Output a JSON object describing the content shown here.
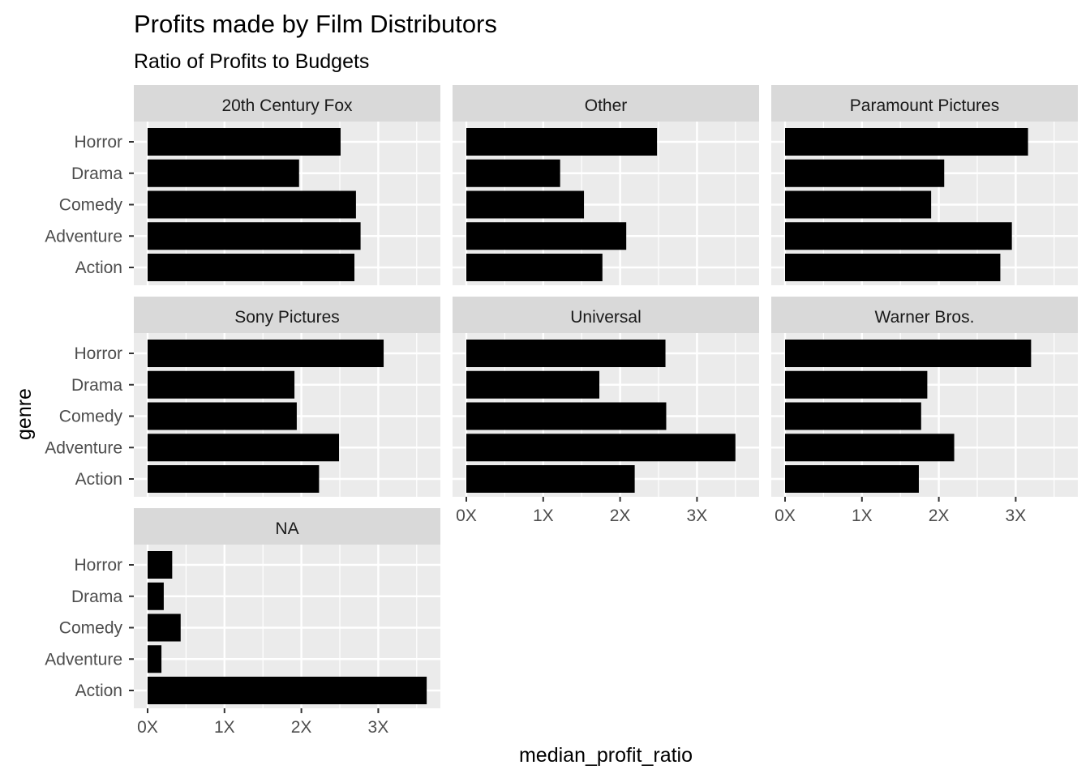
{
  "chart_data": {
    "type": "bar",
    "orientation": "horizontal",
    "title": "Profits made by Film Distributors",
    "subtitle": "Ratio of Profits to Budgets",
    "xlabel": "median_profit_ratio",
    "ylabel": "genre",
    "categories": [
      "Action",
      "Adventure",
      "Comedy",
      "Drama",
      "Horror"
    ],
    "xlim": [
      0,
      3.8
    ],
    "x_ticks": [
      {
        "value": 0,
        "label": "0X"
      },
      {
        "value": 1,
        "label": "1X"
      },
      {
        "value": 2,
        "label": "2X"
      },
      {
        "value": 3,
        "label": "3X"
      }
    ],
    "grid": true,
    "bar_color": "#000000",
    "panel_background": "#ebebeb",
    "strip_background": "#d9d9d9",
    "facets": [
      {
        "name": "20th Century Fox",
        "values": [
          2.69,
          2.77,
          2.71,
          1.97,
          2.51
        ]
      },
      {
        "name": "Other",
        "values": [
          1.77,
          2.08,
          1.53,
          1.22,
          2.48
        ]
      },
      {
        "name": "Paramount Pictures",
        "values": [
          2.8,
          2.95,
          1.9,
          2.07,
          3.16
        ]
      },
      {
        "name": "Sony Pictures",
        "values": [
          2.23,
          2.49,
          1.94,
          1.91,
          3.07
        ]
      },
      {
        "name": "Universal",
        "values": [
          2.19,
          3.5,
          2.6,
          1.73,
          2.59
        ]
      },
      {
        "name": "Warner Bros.",
        "values": [
          1.74,
          2.2,
          1.77,
          1.85,
          3.2
        ]
      },
      {
        "name": "NA",
        "values": [
          3.63,
          0.18,
          0.43,
          0.21,
          0.32
        ]
      }
    ]
  }
}
